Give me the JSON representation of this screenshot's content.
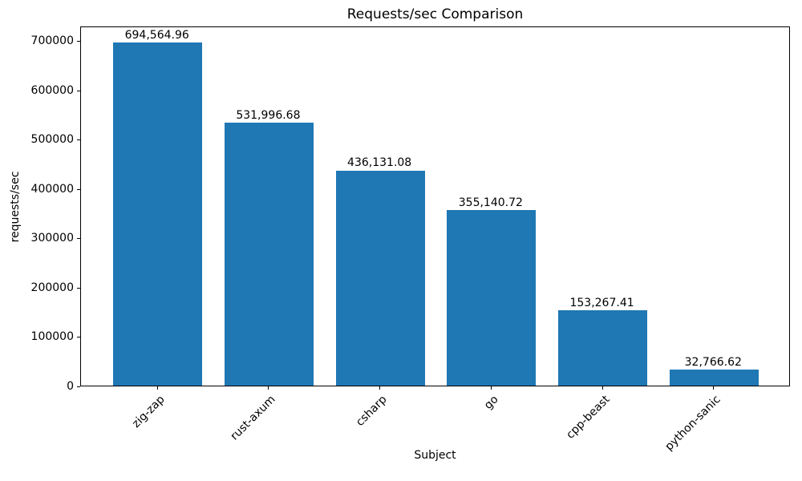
{
  "chart_data": {
    "type": "bar",
    "title": "Requests/sec Comparison",
    "xlabel": "Subject",
    "ylabel": "requests/sec",
    "categories": [
      "zig-zap",
      "rust-axum",
      "csharp",
      "go",
      "cpp-beast",
      "python-sanic"
    ],
    "values": [
      694564.96,
      531996.68,
      436131.08,
      355140.72,
      153267.41,
      32766.62
    ],
    "value_labels": [
      "694,564.96",
      "531,996.68",
      "436,131.08",
      "355,140.72",
      "153,267.41",
      "32,766.62"
    ],
    "ytick_values": [
      0,
      100000,
      200000,
      300000,
      400000,
      500000,
      600000,
      700000
    ],
    "ytick_labels": [
      "0",
      "100000",
      "200000",
      "300000",
      "400000",
      "500000",
      "600000",
      "700000"
    ],
    "ylim": [
      0,
      729293
    ],
    "bar_color": "#1f77b4",
    "grid": false,
    "legend_position": "none"
  }
}
